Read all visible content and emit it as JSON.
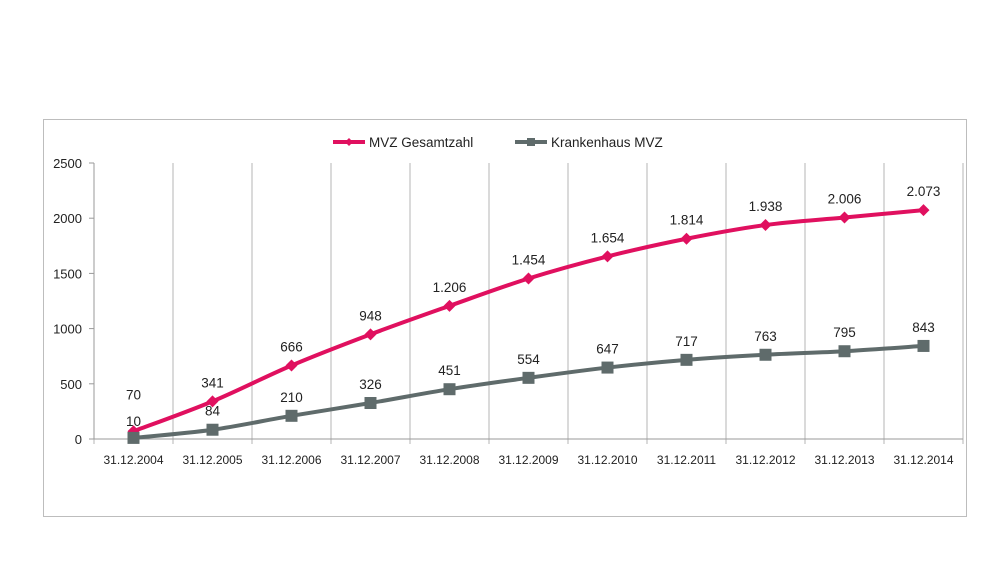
{
  "chart_data": {
    "type": "line",
    "title": "",
    "xlabel": "",
    "ylabel": "",
    "categories": [
      "31.12.2004",
      "31.12.2005",
      "31.12.2006",
      "31.12.2007",
      "31.12.2008",
      "31.12.2009",
      "31.12.2010",
      "31.12.2011",
      "31.12.2012",
      "31.12.2013",
      "31.12.2014"
    ],
    "ylim": [
      0,
      2500
    ],
    "yticks": [
      0,
      500,
      1000,
      1500,
      2000,
      2500
    ],
    "grid": "vertical",
    "legend_position": "top-center",
    "series": [
      {
        "name": "MVZ Gesamtzahl",
        "color": "#e0105f",
        "marker": "diamond",
        "values": [
          70,
          341,
          666,
          948,
          1206,
          1454,
          1654,
          1814,
          1938,
          2006,
          2073
        ],
        "labels": [
          "70",
          "341",
          "666",
          "948",
          "1.206",
          "1.454",
          "1.654",
          "1.814",
          "1.938",
          "2.006",
          "2.073"
        ]
      },
      {
        "name": "Krankenhaus MVZ",
        "color": "#5f6b6b",
        "marker": "square",
        "values": [
          10,
          84,
          210,
          326,
          451,
          554,
          647,
          717,
          763,
          795,
          843
        ],
        "labels": [
          "10",
          "84",
          "210",
          "326",
          "451",
          "554",
          "647",
          "717",
          "763",
          "795",
          "843"
        ]
      }
    ]
  }
}
